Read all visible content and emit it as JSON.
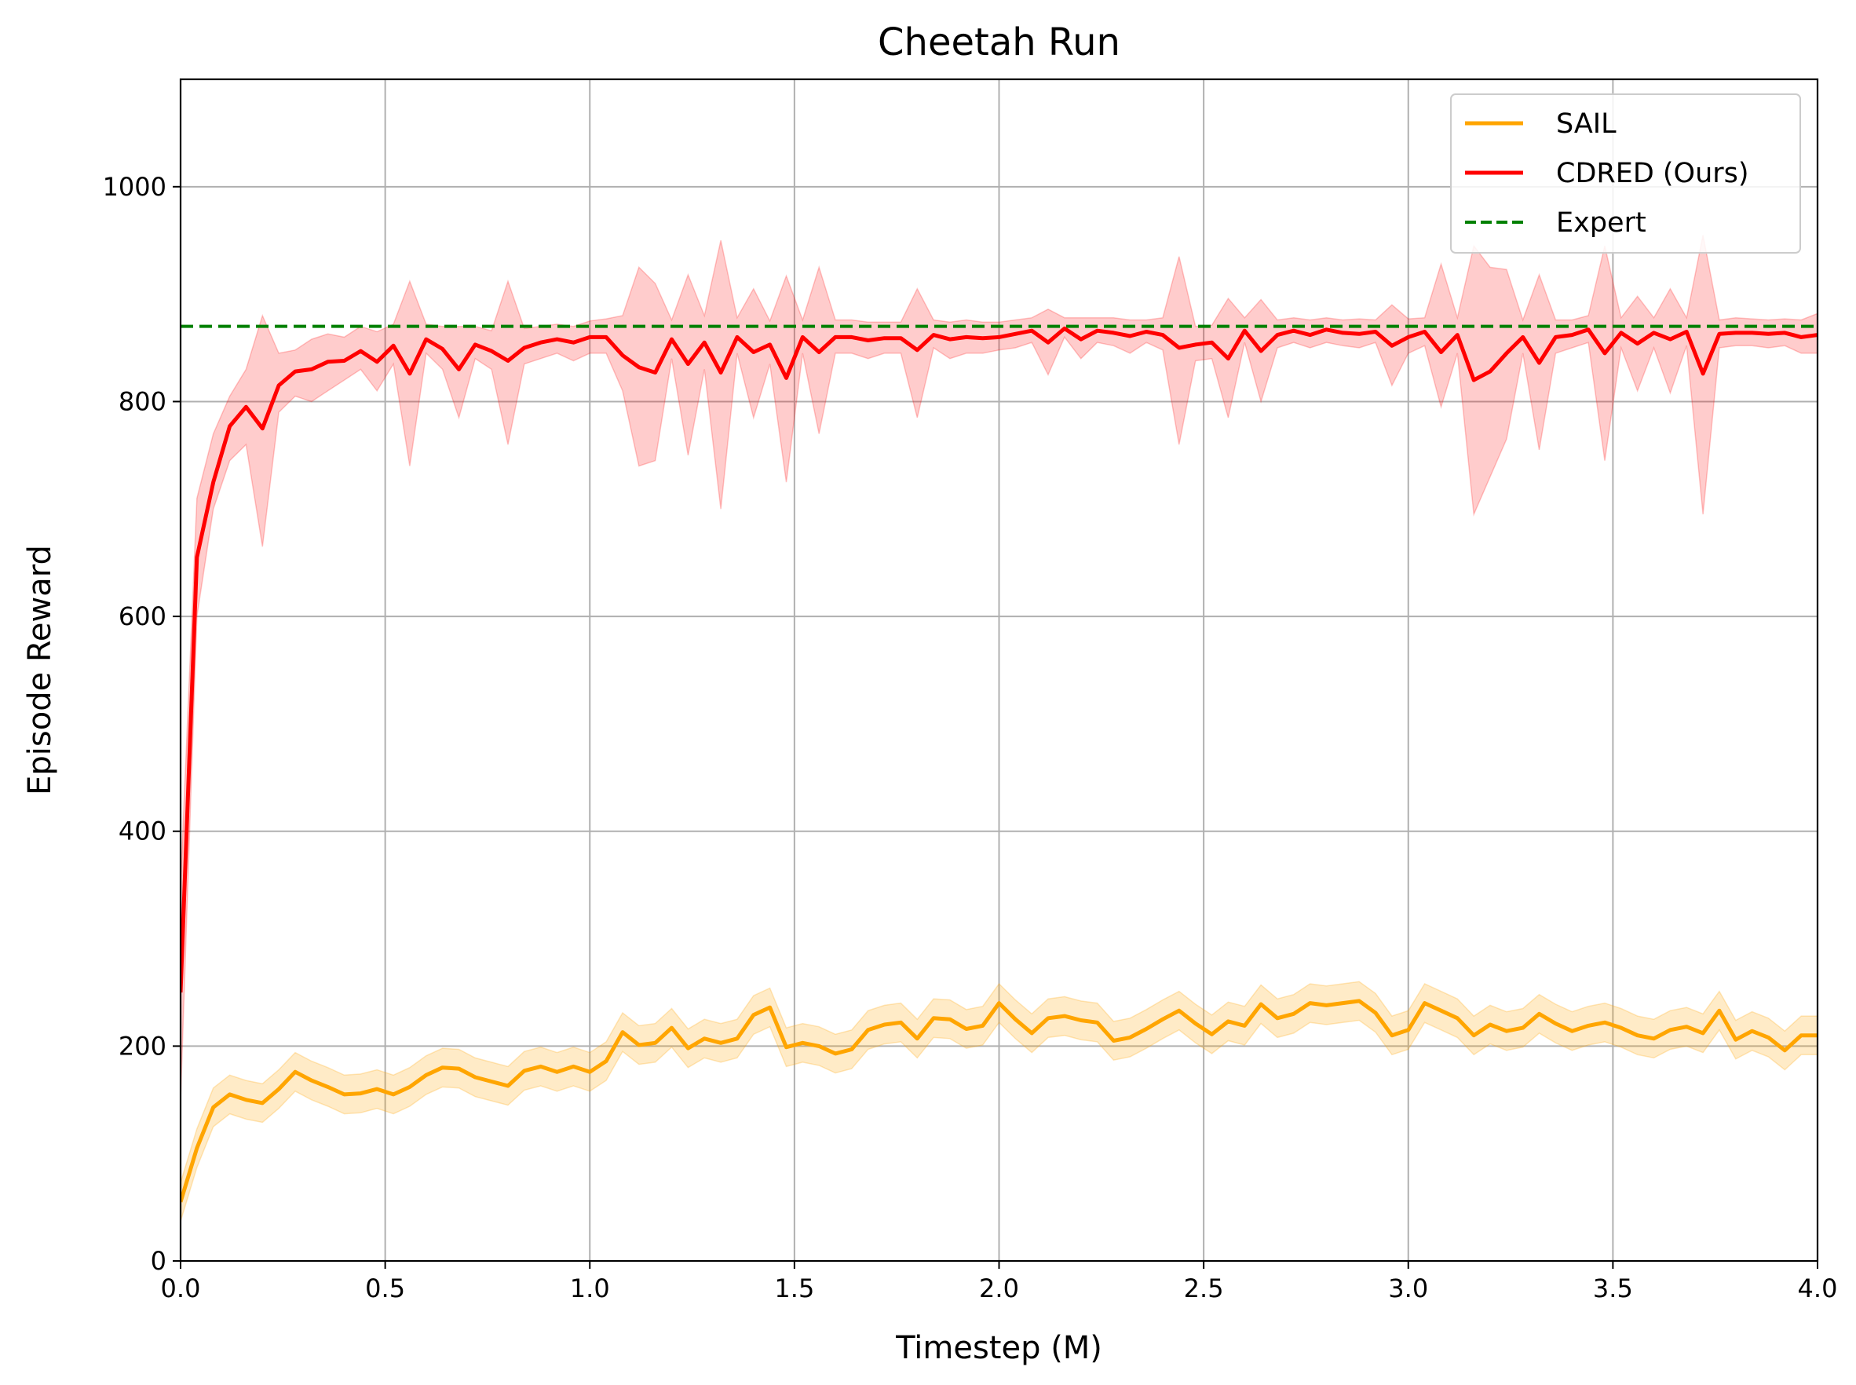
{
  "chart_data": {
    "type": "line",
    "title": "Cheetah Run",
    "xlabel": "Timestep (M)",
    "ylabel": "Episode Reward",
    "xlim": [
      0,
      4
    ],
    "ylim": [
      0,
      1100
    ],
    "xticks": [
      0,
      0.5,
      1,
      1.5,
      2,
      2.5,
      3,
      3.5,
      4
    ],
    "xtick_labels": [
      "0.0",
      "0.5",
      "1.0",
      "1.5",
      "2.0",
      "2.5",
      "3.0",
      "3.5",
      "4.0"
    ],
    "yticks": [
      0,
      200,
      400,
      600,
      800,
      1000
    ],
    "ytick_labels": [
      "0",
      "200",
      "400",
      "600",
      "800",
      "1000"
    ],
    "grid": true,
    "legend_position": "top-right",
    "series": [
      {
        "name": "SAIL",
        "color": "#ffa500",
        "x": [
          0,
          0.04,
          0.08,
          0.12,
          0.16,
          0.2,
          0.24,
          0.28,
          0.32,
          0.36,
          0.4,
          0.44,
          0.48,
          0.52,
          0.56,
          0.6,
          0.64,
          0.68,
          0.72,
          0.76,
          0.8,
          0.84,
          0.88,
          0.92,
          0.96,
          1.0,
          1.04,
          1.08,
          1.12,
          1.16,
          1.2,
          1.24,
          1.28,
          1.32,
          1.36,
          1.4,
          1.44,
          1.48,
          1.52,
          1.56,
          1.6,
          1.64,
          1.68,
          1.72,
          1.76,
          1.8,
          1.84,
          1.88,
          1.92,
          1.96,
          2.0,
          2.04,
          2.08,
          2.12,
          2.16,
          2.2,
          2.24,
          2.28,
          2.32,
          2.36,
          2.4,
          2.44,
          2.48,
          2.52,
          2.56,
          2.6,
          2.64,
          2.68,
          2.72,
          2.76,
          2.8,
          2.84,
          2.88,
          2.92,
          2.96,
          3.0,
          3.04,
          3.08,
          3.12,
          3.16,
          3.2,
          3.24,
          3.28,
          3.32,
          3.36,
          3.4,
          3.44,
          3.48,
          3.52,
          3.56,
          3.6,
          3.64,
          3.68,
          3.72,
          3.76,
          3.8,
          3.84,
          3.88,
          3.92,
          3.96,
          4.0
        ],
        "values": [
          55,
          105,
          143,
          155,
          150,
          147,
          160,
          176,
          168,
          162,
          155,
          156,
          160,
          155,
          162,
          173,
          180,
          179,
          171,
          167,
          163,
          177,
          181,
          176,
          181,
          176,
          186,
          213,
          201,
          203,
          217,
          198,
          207,
          203,
          207,
          229,
          236,
          199,
          203,
          200,
          193,
          197,
          215,
          220,
          222,
          207,
          226,
          225,
          216,
          219,
          240,
          225,
          212,
          226,
          228,
          224,
          222,
          205,
          208,
          216,
          225,
          233,
          221,
          211,
          223,
          219,
          239,
          226,
          230,
          240,
          238,
          240,
          242,
          231,
          210,
          215,
          240,
          233,
          226,
          210,
          220,
          214,
          217,
          230,
          221,
          214,
          219,
          222,
          217,
          210,
          207,
          215,
          218,
          212,
          233,
          206,
          214,
          208,
          196,
          210,
          210
        ],
        "band": 18
      },
      {
        "name": "CDRED (Ours)",
        "color": "#ff0000",
        "x": [
          0,
          0.04,
          0.08,
          0.12,
          0.16,
          0.2,
          0.24,
          0.28,
          0.32,
          0.36,
          0.4,
          0.44,
          0.48,
          0.52,
          0.56,
          0.6,
          0.64,
          0.68,
          0.72,
          0.76,
          0.8,
          0.84,
          0.88,
          0.92,
          0.96,
          1.0,
          1.04,
          1.08,
          1.12,
          1.16,
          1.2,
          1.24,
          1.28,
          1.32,
          1.36,
          1.4,
          1.44,
          1.48,
          1.52,
          1.56,
          1.6,
          1.64,
          1.68,
          1.72,
          1.76,
          1.8,
          1.84,
          1.88,
          1.92,
          1.96,
          2.0,
          2.04,
          2.08,
          2.12,
          2.16,
          2.2,
          2.24,
          2.28,
          2.32,
          2.36,
          2.4,
          2.44,
          2.48,
          2.52,
          2.56,
          2.6,
          2.64,
          2.68,
          2.72,
          2.76,
          2.8,
          2.84,
          2.88,
          2.92,
          2.96,
          3.0,
          3.04,
          3.08,
          3.12,
          3.16,
          3.2,
          3.24,
          3.28,
          3.32,
          3.36,
          3.4,
          3.44,
          3.48,
          3.52,
          3.56,
          3.6,
          3.64,
          3.68,
          3.72,
          3.76,
          3.8,
          3.84,
          3.88,
          3.92,
          3.96,
          4.0
        ],
        "values": [
          250,
          655,
          725,
          777,
          795,
          775,
          815,
          828,
          830,
          837,
          838,
          847,
          837,
          852,
          826,
          858,
          849,
          830,
          853,
          847,
          838,
          850,
          855,
          858,
          855,
          860,
          860,
          843,
          832,
          827,
          858,
          835,
          855,
          827,
          860,
          846,
          853,
          822,
          860,
          846,
          860,
          860,
          857,
          859,
          859,
          848,
          862,
          858,
          860,
          859,
          860,
          863,
          866,
          855,
          868,
          858,
          866,
          864,
          861,
          865,
          862,
          850,
          853,
          855,
          840,
          866,
          847,
          862,
          866,
          862,
          867,
          864,
          863,
          865,
          852,
          860,
          865,
          846,
          862,
          820,
          828,
          845,
          860,
          836,
          860,
          862,
          867,
          845,
          864,
          854,
          864,
          858,
          865,
          826,
          863,
          864,
          864,
          863,
          864,
          860,
          862
        ],
        "band_low": [
          150,
          600,
          700,
          745,
          760,
          665,
          790,
          805,
          800,
          810,
          820,
          830,
          810,
          835,
          740,
          845,
          830,
          785,
          840,
          830,
          760,
          835,
          840,
          845,
          838,
          845,
          845,
          810,
          740,
          745,
          840,
          750,
          830,
          700,
          845,
          785,
          835,
          725,
          845,
          770,
          845,
          845,
          840,
          845,
          845,
          785,
          850,
          840,
          845,
          845,
          848,
          850,
          855,
          825,
          860,
          840,
          855,
          852,
          845,
          855,
          848,
          760,
          838,
          840,
          785,
          855,
          800,
          850,
          855,
          850,
          855,
          852,
          850,
          855,
          815,
          845,
          852,
          795,
          845,
          695,
          730,
          765,
          845,
          755,
          845,
          850,
          855,
          745,
          850,
          810,
          850,
          808,
          852,
          695,
          850,
          852,
          852,
          850,
          852,
          845,
          845
        ],
        "band_high": [
          350,
          710,
          770,
          805,
          830,
          880,
          845,
          848,
          858,
          863,
          860,
          870,
          865,
          872,
          912,
          872,
          870,
          870,
          870,
          866,
          912,
          868,
          870,
          872,
          870,
          875,
          877,
          880,
          925,
          910,
          876,
          918,
          880,
          950,
          878,
          905,
          875,
          917,
          876,
          925,
          876,
          876,
          874,
          874,
          874,
          905,
          876,
          874,
          876,
          874,
          874,
          876,
          878,
          886,
          878,
          878,
          878,
          878,
          876,
          876,
          878,
          935,
          870,
          871,
          896,
          878,
          895,
          876,
          878,
          876,
          878,
          876,
          877,
          876,
          890,
          877,
          878,
          928,
          878,
          945,
          925,
          923,
          876,
          918,
          876,
          876,
          880,
          945,
          878,
          898,
          878,
          905,
          878,
          955,
          876,
          878,
          877,
          876,
          877,
          876,
          882
        ]
      },
      {
        "name": "Expert",
        "color": "#008000",
        "style": "dashed",
        "value": 870
      }
    ]
  }
}
